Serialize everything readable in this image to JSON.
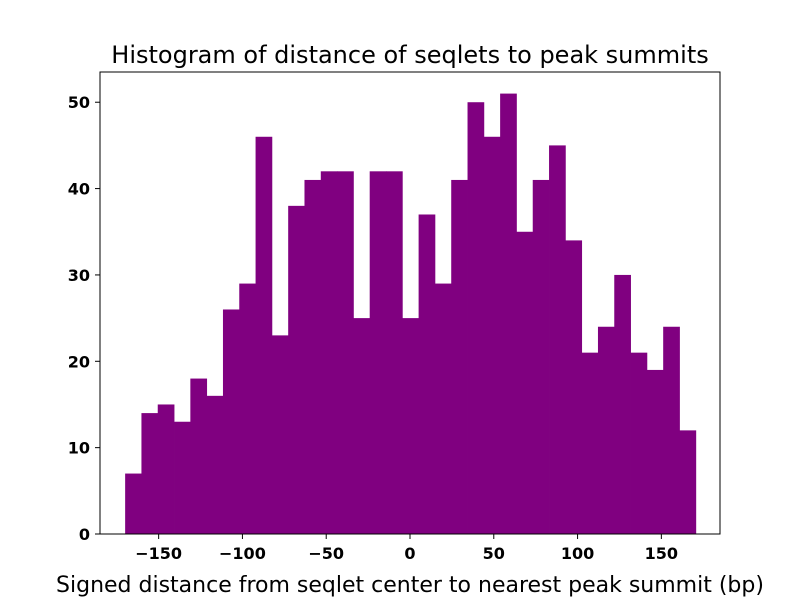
{
  "chart_data": {
    "type": "bar",
    "title": "Histogram of distance of seqlets to peak summits",
    "xlabel": "Signed distance from seqlet center to nearest peak summit (bp)",
    "ylabel": "",
    "bar_color": "#800080",
    "xlim": [
      -185,
      185
    ],
    "ylim": [
      0,
      53.5
    ],
    "bin_start": -170,
    "bin_width": 9.73,
    "values": [
      7,
      14,
      15,
      13,
      18,
      16,
      26,
      29,
      46,
      23,
      38,
      41,
      42,
      42,
      25,
      42,
      42,
      25,
      37,
      29,
      41,
      50,
      46,
      51,
      35,
      41,
      45,
      34,
      21,
      24,
      30,
      21,
      19,
      24,
      12
    ],
    "x_ticks": [
      -150,
      -100,
      -50,
      0,
      50,
      100,
      150
    ],
    "x_tick_labels": [
      "−150",
      "−100",
      "−50",
      "0",
      "50",
      "100",
      "150"
    ],
    "y_ticks": [
      0,
      10,
      20,
      30,
      40,
      50
    ],
    "y_tick_labels": [
      "0",
      "10",
      "20",
      "30",
      "40",
      "50"
    ],
    "grid": false,
    "legend": "none"
  }
}
